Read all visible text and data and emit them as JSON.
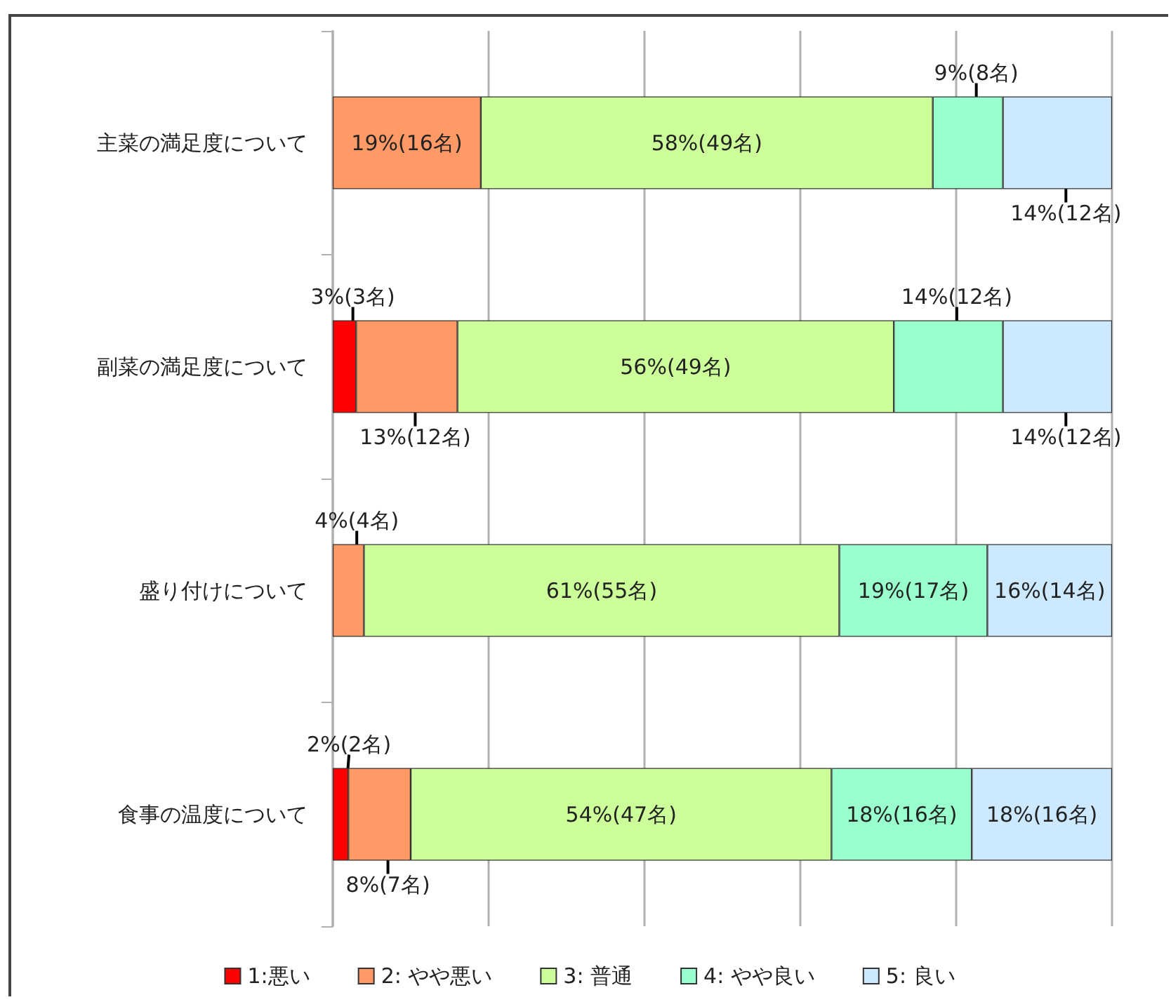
{
  "chart_data": {
    "type": "bar",
    "orientation": "horizontal",
    "stacked": true,
    "categories": [
      "主菜の満足度について",
      "副菜の満足度について",
      "盛り付けについて",
      "食事の温度について"
    ],
    "series": [
      {
        "name": "1:悪い",
        "color": "#ff0000",
        "values": [
          0,
          3,
          0,
          2
        ],
        "value_labels": [
          null,
          "3%(3名)",
          null,
          "2%(2名)"
        ]
      },
      {
        "name": "2: やや悪い",
        "color": "#ff9966",
        "values": [
          19,
          13,
          4,
          8
        ],
        "value_labels": [
          "19%(16名)",
          "13%(12名)",
          "4%(4名)",
          "8%(7名)"
        ]
      },
      {
        "name": "3: 普通",
        "color": "#ccff99",
        "values": [
          58,
          56,
          61,
          54
        ],
        "value_labels": [
          "58%(49名)",
          "56%(49名)",
          "61%(55名)",
          "54%(47名)"
        ]
      },
      {
        "name": "4: やや良い",
        "color": "#99ffcc",
        "values": [
          9,
          14,
          19,
          18
        ],
        "value_labels": [
          "9%(8名)",
          "14%(12名)",
          "19%(17名)",
          "18%(16名)"
        ]
      },
      {
        "name": "5: 良い",
        "color": "#cce9ff",
        "values": [
          14,
          14,
          16,
          18
        ],
        "value_labels": [
          "14%(12名)",
          "14%(12名)",
          "16%(14名)",
          "18%(16名)"
        ]
      }
    ],
    "xlim": [
      0,
      100
    ],
    "tick_labels": "y",
    "grid": "x",
    "legend": "bottom"
  }
}
